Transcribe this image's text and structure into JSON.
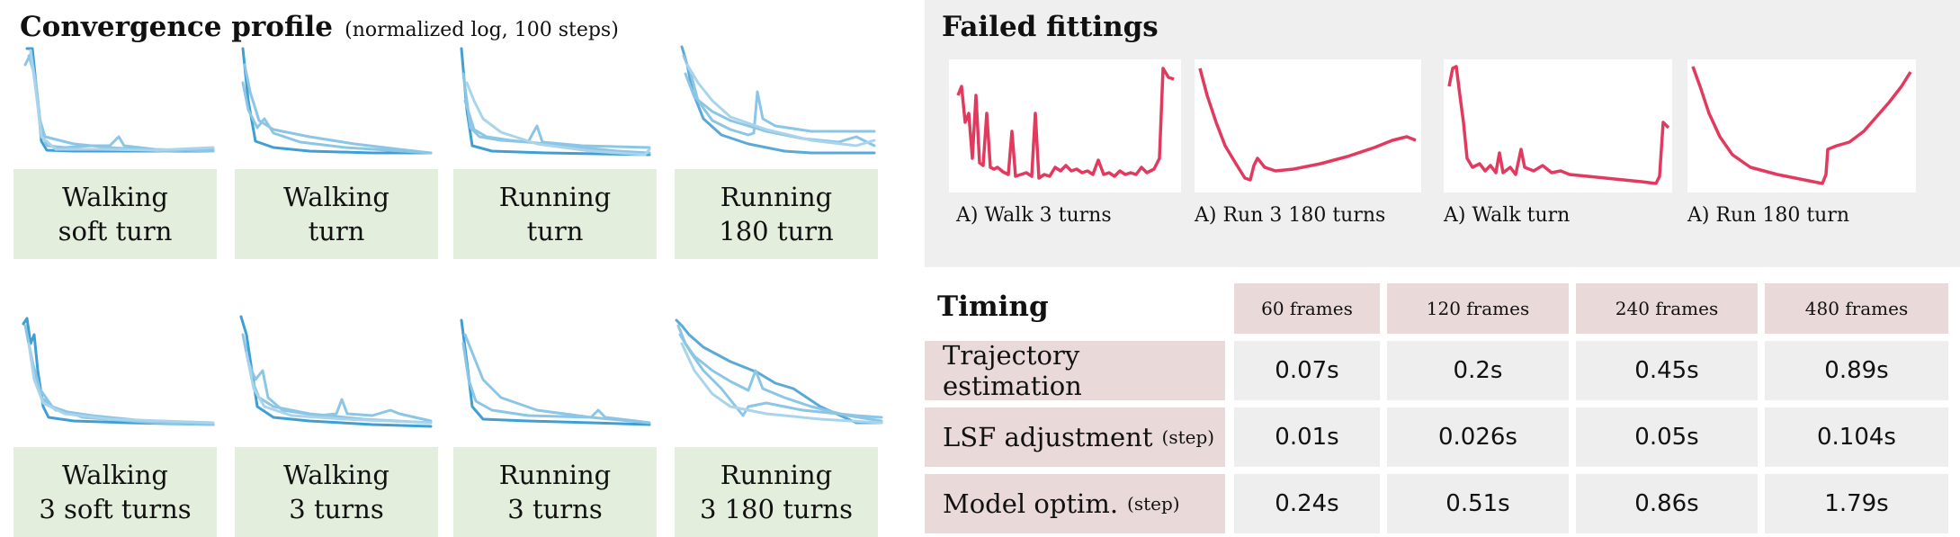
{
  "convergence": {
    "title": "Convergence profile",
    "subtitle": "(normalized log, 100 steps)",
    "line_color": "#5aa9d6",
    "label_bg": "#e4eedc",
    "panels": [
      {
        "line1": "Walking",
        "line2": "soft turn"
      },
      {
        "line1": "Walking",
        "line2": "turn"
      },
      {
        "line1": "Running",
        "line2": "turn"
      },
      {
        "line1": "Running",
        "line2": "180 turn"
      },
      {
        "line1": "Walking",
        "line2": "3 soft turns"
      },
      {
        "line1": "Walking",
        "line2": "3 turns"
      },
      {
        "line1": "Running",
        "line2": "3 turns"
      },
      {
        "line1": "Running",
        "line2": "3 180 turns"
      }
    ]
  },
  "failed": {
    "title": "Failed fittings",
    "line_color": "#e23a5e",
    "items": [
      {
        "caption": "A) Walk 3 turns"
      },
      {
        "caption": "A) Run 3 180 turns"
      },
      {
        "caption": "A) Walk turn"
      },
      {
        "caption": "A) Run 180 turn"
      }
    ]
  },
  "timing": {
    "title": "Timing",
    "columns": [
      "60 frames",
      "120 frames",
      "240 frames",
      "480 frames"
    ],
    "rows": [
      {
        "label": "Trajectory estimation",
        "suffix": "",
        "values": [
          "0.07s",
          "0.2s",
          "0.45s",
          "0.89s"
        ]
      },
      {
        "label": "LSF adjustment",
        "suffix": "(step)",
        "values": [
          "0.01s",
          "0.026s",
          "0.05s",
          "0.104s"
        ]
      },
      {
        "label": "Model optim.",
        "suffix": "(step)",
        "values": [
          "0.24s",
          "0.51s",
          "0.86s",
          "1.79s"
        ]
      }
    ]
  }
}
